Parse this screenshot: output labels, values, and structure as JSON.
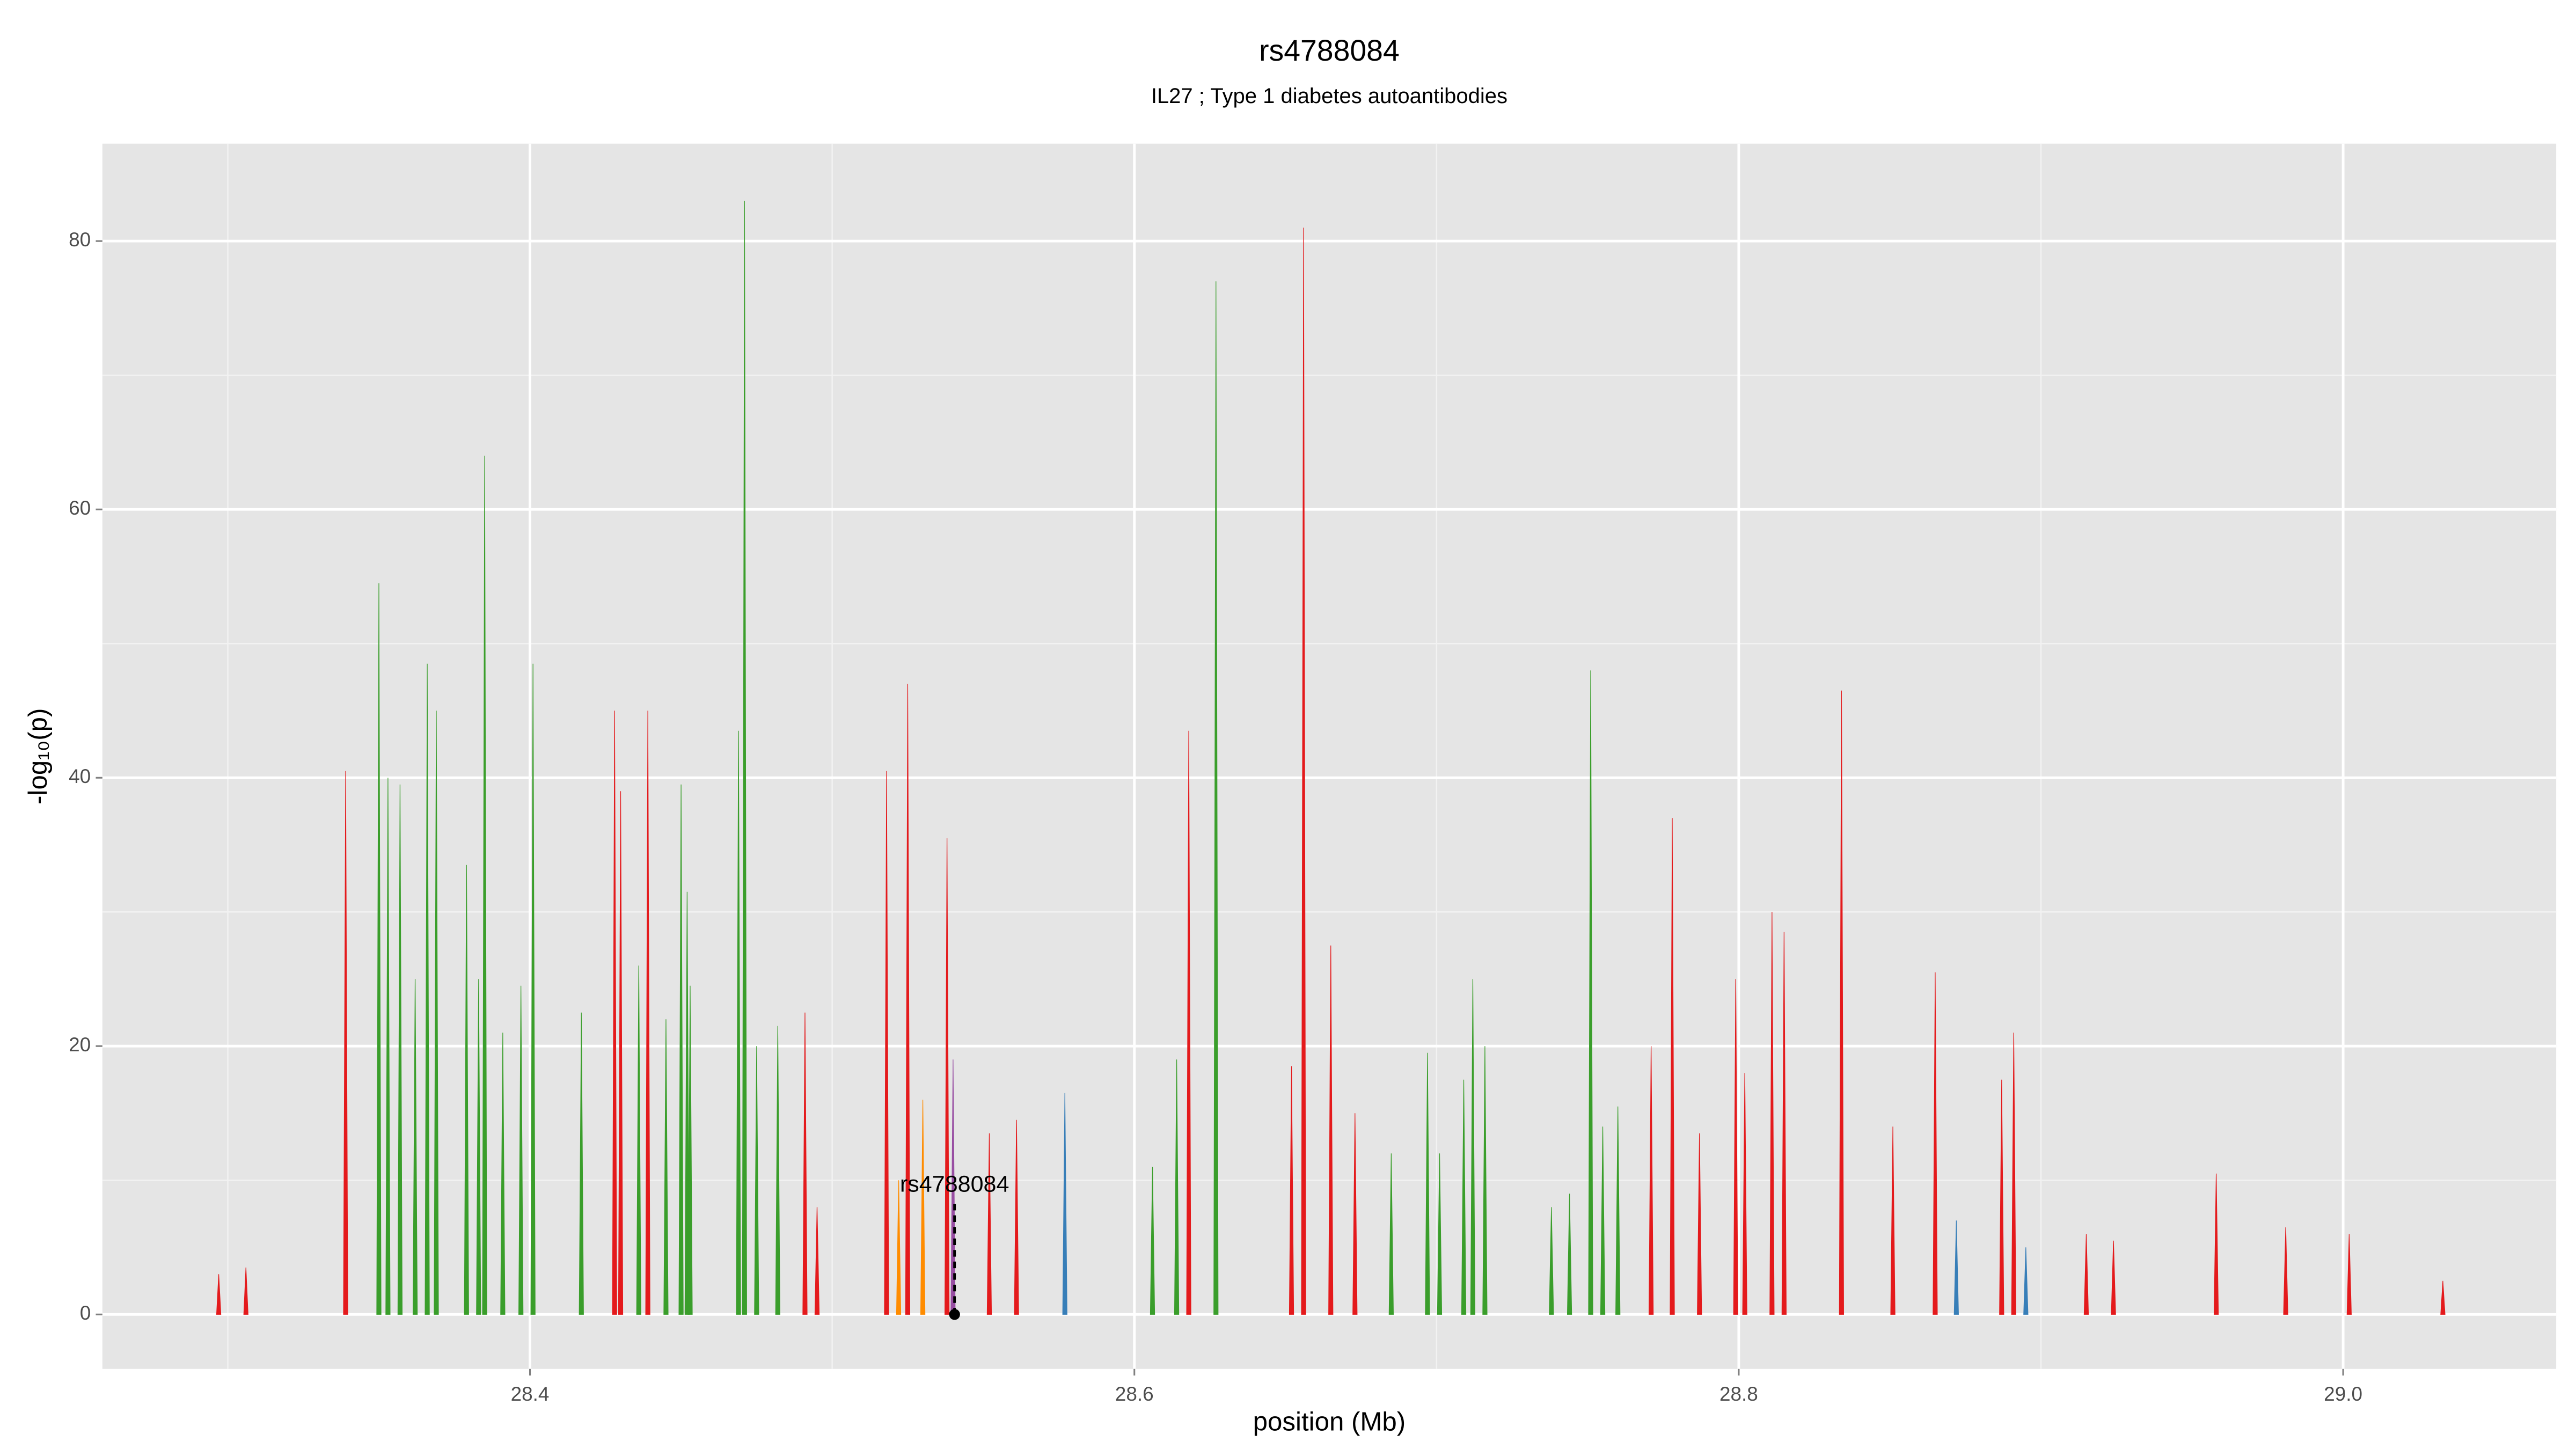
{
  "chart_data": {
    "type": "spike",
    "title": "rs4788084",
    "subtitle": "IL27 ; Type 1 diabetes autoantibodies",
    "x_label": "position (Mb)",
    "y_label": "-log₁₀(p)",
    "xlim": [
      28.2585,
      29.0705
    ],
    "ylim": [
      -4.06,
      87.26
    ],
    "xticks": [
      28.4,
      28.6,
      28.8,
      {
        "value": 29,
        "label": "29.0"
      }
    ],
    "yticks": [
      0,
      20,
      40,
      60,
      80
    ],
    "grid": true,
    "series": [
      {
        "color": "#3a9e2b",
        "x": [
          28.35,
          28.353,
          28.357,
          28.362,
          28.366,
          28.369,
          28.379,
          28.383,
          28.385,
          28.391,
          28.397,
          28.401,
          28.417,
          28.436,
          28.445,
          28.45,
          28.452,
          28.453,
          28.469,
          28.471,
          28.475,
          28.482,
          28.606,
          28.614,
          28.627,
          28.685,
          28.697,
          28.701,
          28.709,
          28.712,
          28.716,
          28.738,
          28.744,
          28.751,
          28.755,
          28.76
        ],
        "values": [
          54.5,
          40,
          39.5,
          25,
          48.5,
          45,
          33.5,
          25,
          64,
          21,
          24.5,
          48.5,
          22.5,
          26,
          22,
          39.5,
          31.5,
          24.5,
          43.5,
          83,
          20,
          21.5,
          11,
          19,
          77,
          12,
          19.5,
          12,
          17.5,
          25,
          20,
          8,
          9,
          48,
          14,
          15.5
        ]
      },
      {
        "color": "#e41a1c",
        "x": [
          28.297,
          28.306,
          28.339,
          28.428,
          28.43,
          28.439,
          28.491,
          28.495,
          28.518,
          28.525,
          28.538,
          28.552,
          28.561,
          28.618,
          28.652,
          28.656,
          28.665,
          28.673,
          28.771,
          28.778,
          28.787,
          28.799,
          28.802,
          28.811,
          28.815,
          28.834,
          28.851,
          28.865,
          28.887,
          28.891,
          28.915,
          28.924,
          28.958,
          28.981,
          29.002,
          29.033
        ],
        "values": [
          3,
          3.5,
          40.5,
          45,
          39,
          45,
          22.5,
          8,
          40.5,
          47,
          35.5,
          13.5,
          14.5,
          43.5,
          18.5,
          81,
          27.5,
          15,
          20,
          37,
          13.5,
          25,
          18,
          30,
          28.5,
          46.5,
          14,
          25.5,
          17.5,
          21,
          6,
          5.5,
          10.5,
          6.5,
          6,
          2.5
        ]
      },
      {
        "color": "#ff8c00",
        "x": [
          28.522,
          28.53
        ],
        "values": [
          10,
          16
        ]
      },
      {
        "color": "#377eb8",
        "x": [
          28.577,
          28.872,
          28.895
        ],
        "values": [
          16.5,
          7,
          5
        ]
      },
      {
        "color": "#984ea3",
        "x": [
          28.54
        ],
        "values": [
          19
        ]
      }
    ],
    "annotation": {
      "label": "rs4788084",
      "x": 28.5405,
      "y": 0,
      "line_top": 8.5
    }
  }
}
